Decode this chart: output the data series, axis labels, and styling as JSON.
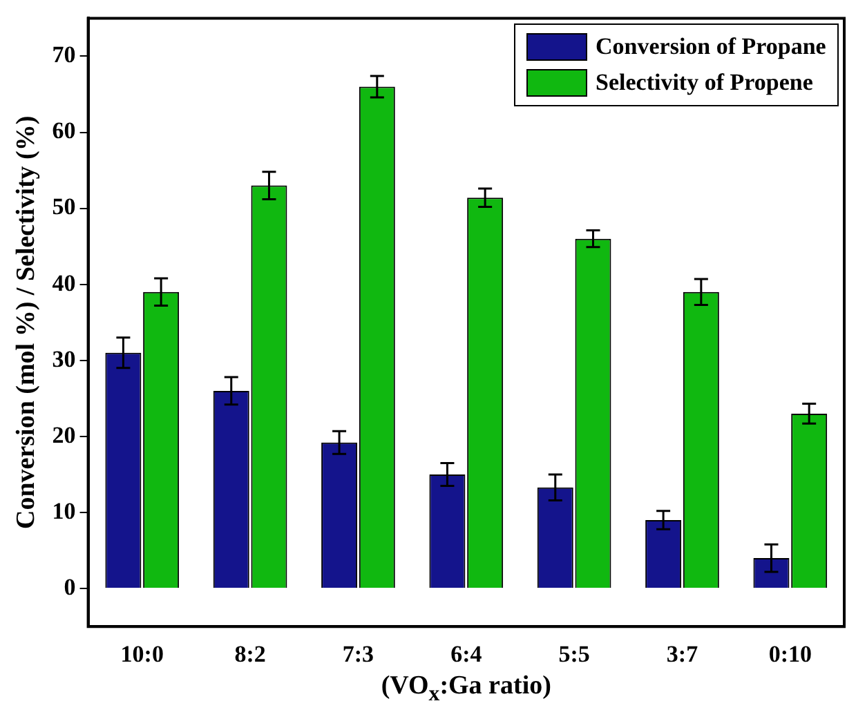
{
  "chart_data": {
    "type": "bar",
    "xlabel": "(VO$_{x}$:Ga ratio)",
    "ylabel": "Conversion (mol %) / Selectivity (%)",
    "categories": [
      "10:0",
      "8:2",
      "7:3",
      "6:4",
      "5:5",
      "3:7",
      "0:10"
    ],
    "series": [
      {
        "name": "Conversion of Propane",
        "color": "#14148c",
        "values": [
          31,
          26,
          19.2,
          15,
          13.3,
          9,
          4
        ],
        "errors": [
          2,
          1.8,
          1.5,
          1.5,
          1.7,
          1.2,
          1.8
        ]
      },
      {
        "name": "Selectivity of Propene",
        "color": "#10b810",
        "values": [
          39,
          53,
          66,
          51.4,
          46,
          39,
          23
        ],
        "errors": [
          1.8,
          1.8,
          1.4,
          1.2,
          1.1,
          1.7,
          1.3
        ]
      }
    ],
    "ylim": [
      -5,
      75
    ],
    "yticks": [
      0,
      10,
      20,
      30,
      40,
      50,
      60,
      70
    ],
    "grid": false,
    "legend": "top right"
  }
}
